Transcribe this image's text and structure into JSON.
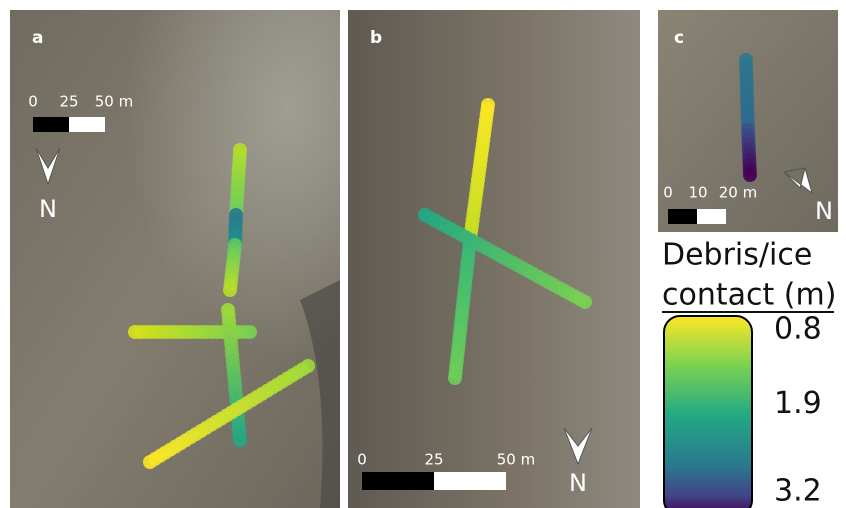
{
  "panels": [
    {
      "label": "a",
      "scale_bar": [
        "0",
        "25",
        "50 m"
      ],
      "north": "N"
    },
    {
      "label": "b",
      "scale_bar": [
        "0",
        "25",
        "50 m"
      ],
      "north": "N"
    },
    {
      "label": "c",
      "scale_bar": [
        "0",
        "10",
        "20 m"
      ],
      "north": "N"
    }
  ],
  "legend": {
    "title_line1": "Debris/ice",
    "title_line2": "contact (m)",
    "ticks": [
      0.8,
      1.9,
      3.2
    ],
    "lim": [
      0.8,
      3.2
    ]
  }
}
